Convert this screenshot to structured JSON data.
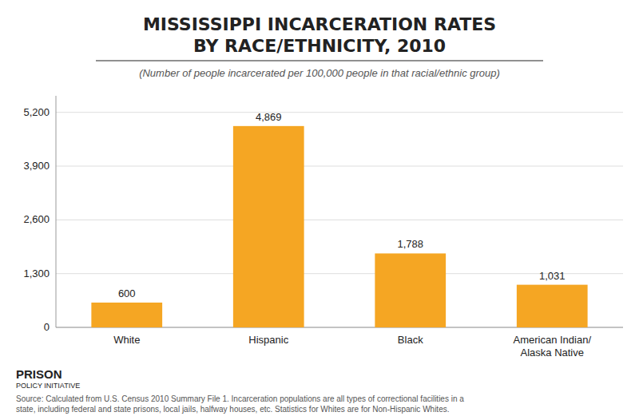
{
  "chart_data": {
    "type": "bar",
    "title": "MISSISSIPPI INCARCERATION RATES\nBY RACE/ETHNICITY, 2010",
    "subtitle": "(Number of people incarcerated per 100,000 people in that racial/ethnic group)",
    "categories": [
      "White",
      "Hispanic",
      "Black",
      "American Indian/\nAlaska Native"
    ],
    "values": [
      600,
      4869,
      1788,
      1031
    ],
    "value_labels": [
      "600",
      "4,869",
      "1,788",
      "1,031"
    ],
    "data_labels": true,
    "color": "#F5A623",
    "ylim": [
      0,
      5600
    ],
    "yticks": [
      0,
      {
        "value": 1300,
        "label": "1,300"
      },
      {
        "value": 2600,
        "label": "2,600"
      },
      {
        "value": 3900,
        "label": "3,900"
      },
      {
        "value": 5200,
        "label": "5,200"
      }
    ],
    "grid": true,
    "annotations": [
      "Source: Calculated from U.S. Census 2010 Summary File 1. Incarceration populations are all types of correctional facilities in a\nstate, including federal and state prisons, local jails, halfway houses, etc. Statistics for Whites are for Non-Hispanic Whites.",
      "PRISON",
      "POLICY INITIATIVE"
    ]
  }
}
